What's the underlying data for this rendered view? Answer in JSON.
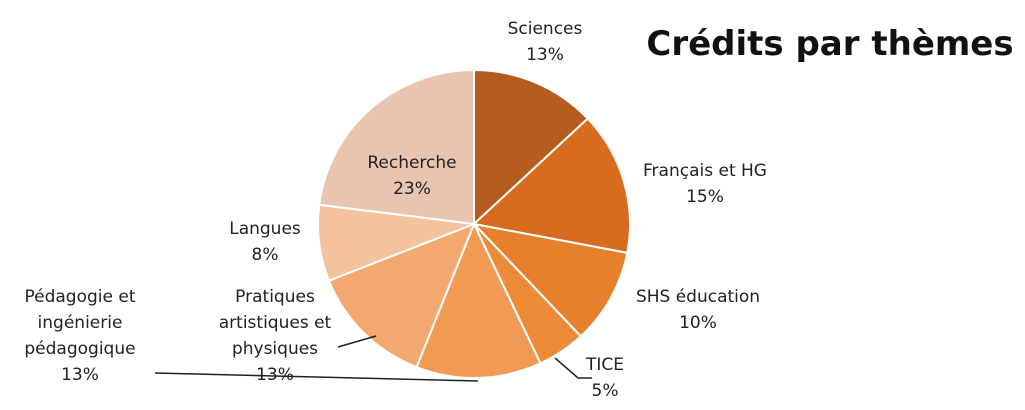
{
  "chart_data": {
    "type": "pie",
    "title": "Crédits par thèmes",
    "categories": [
      "Sciences",
      "Français et HG",
      "SHS éducation",
      "TICE",
      "Pédagogie et ingénierie pédagogique",
      "Pratiques artistiques et physiques",
      "Langues",
      "Recherche"
    ],
    "values": [
      13,
      15,
      10,
      5,
      13,
      13,
      8,
      23
    ],
    "value_labels": [
      "13%",
      "15%",
      "10%",
      "5%",
      "13%",
      "13%",
      "8%",
      "23%"
    ],
    "colors": [
      "#b55d1f",
      "#d96b1f",
      "#e7802c",
      "#ec8a38",
      "#f09a56",
      "#f2a86e",
      "#f5c29e",
      "#e9c4ae"
    ]
  }
}
